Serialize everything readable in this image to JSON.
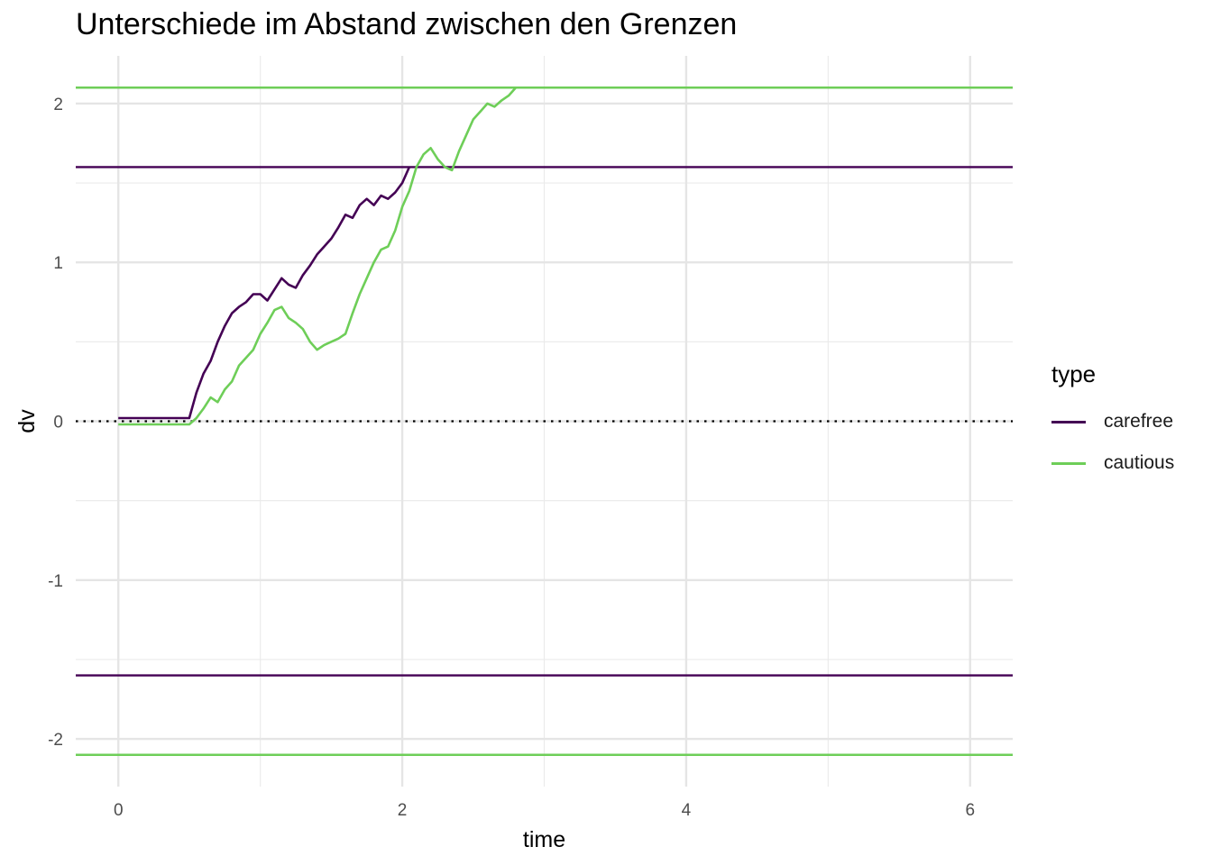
{
  "chart_data": {
    "type": "line",
    "title": "Unterschiede im Abstand zwischen den Grenzen",
    "xlabel": "time",
    "ylabel": "dv",
    "xlim": [
      -0.3,
      6.3
    ],
    "ylim": [
      -2.3,
      2.3
    ],
    "x_ticks": [
      0,
      2,
      4,
      6
    ],
    "x_tick_labels": [
      "0",
      "2",
      "4",
      "6"
    ],
    "y_ticks": [
      -2,
      -1,
      0,
      1,
      2
    ],
    "y_tick_labels": [
      "-2",
      "-1",
      "0",
      "1",
      "2"
    ],
    "grid": true,
    "legend": {
      "title": "type",
      "placement": "right"
    },
    "zero_reference_line": {
      "y": 0,
      "style": "dotted",
      "color": "#000000"
    },
    "series": [
      {
        "name": "carefree",
        "color": "#440154",
        "bounds": [
          1.6,
          -1.6
        ],
        "x": [
          0,
          0.5,
          0.55,
          0.6,
          0.65,
          0.7,
          0.75,
          0.8,
          0.85,
          0.9,
          0.95,
          1.0,
          1.05,
          1.1,
          1.15,
          1.2,
          1.25,
          1.3,
          1.35,
          1.4,
          1.45,
          1.5,
          1.55,
          1.6,
          1.65,
          1.7,
          1.75,
          1.8,
          1.85,
          1.9,
          1.95,
          2.0,
          2.05
        ],
        "y": [
          0.02,
          0.02,
          0.18,
          0.3,
          0.38,
          0.5,
          0.6,
          0.68,
          0.72,
          0.75,
          0.8,
          0.8,
          0.76,
          0.83,
          0.9,
          0.86,
          0.84,
          0.92,
          0.98,
          1.05,
          1.1,
          1.15,
          1.22,
          1.3,
          1.28,
          1.36,
          1.4,
          1.36,
          1.42,
          1.4,
          1.44,
          1.5,
          1.6
        ]
      },
      {
        "name": "cautious",
        "color": "#6ece58",
        "bounds": [
          2.1,
          -2.1
        ],
        "x": [
          0,
          0.5,
          0.55,
          0.6,
          0.65,
          0.7,
          0.75,
          0.8,
          0.85,
          0.9,
          0.95,
          1.0,
          1.05,
          1.1,
          1.15,
          1.2,
          1.25,
          1.3,
          1.35,
          1.4,
          1.45,
          1.5,
          1.55,
          1.6,
          1.65,
          1.7,
          1.75,
          1.8,
          1.85,
          1.9,
          1.95,
          2.0,
          2.05,
          2.1,
          2.15,
          2.2,
          2.25,
          2.3,
          2.35,
          2.4,
          2.45,
          2.5,
          2.55,
          2.6,
          2.65,
          2.7,
          2.75,
          2.8
        ],
        "y": [
          -0.02,
          -0.02,
          0.02,
          0.08,
          0.15,
          0.12,
          0.2,
          0.25,
          0.35,
          0.4,
          0.45,
          0.55,
          0.62,
          0.7,
          0.72,
          0.65,
          0.62,
          0.58,
          0.5,
          0.45,
          0.48,
          0.5,
          0.52,
          0.55,
          0.68,
          0.8,
          0.9,
          1.0,
          1.08,
          1.1,
          1.2,
          1.35,
          1.45,
          1.6,
          1.68,
          1.72,
          1.65,
          1.6,
          1.58,
          1.7,
          1.8,
          1.9,
          1.95,
          2.0,
          1.98,
          2.02,
          2.05,
          2.1
        ]
      }
    ]
  }
}
